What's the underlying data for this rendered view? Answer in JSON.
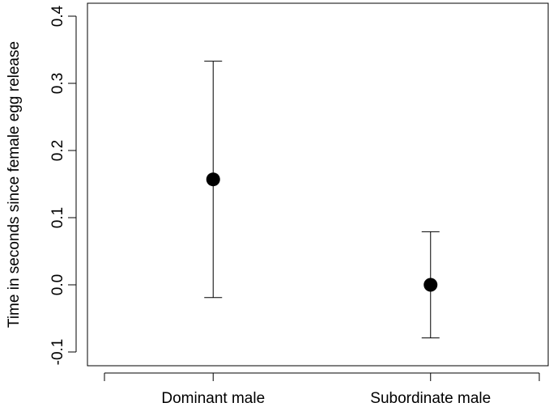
{
  "chart_data": {
    "type": "scatter",
    "title": "",
    "xlabel": "",
    "ylabel": "Time in seconds since female egg release",
    "categories": [
      "Dominant male",
      "Subordinate male"
    ],
    "values": [
      0.157,
      0.0
    ],
    "error_low": [
      -0.019,
      -0.079
    ],
    "error_high": [
      0.333,
      0.079
    ],
    "ylim": [
      -0.1,
      0.4
    ],
    "yticks": [
      "-0.1",
      "0.0",
      "0.1",
      "0.2",
      "0.3",
      "0.4"
    ],
    "xlim": [
      0.5,
      2.5
    ],
    "grid": false,
    "legend": "none"
  }
}
